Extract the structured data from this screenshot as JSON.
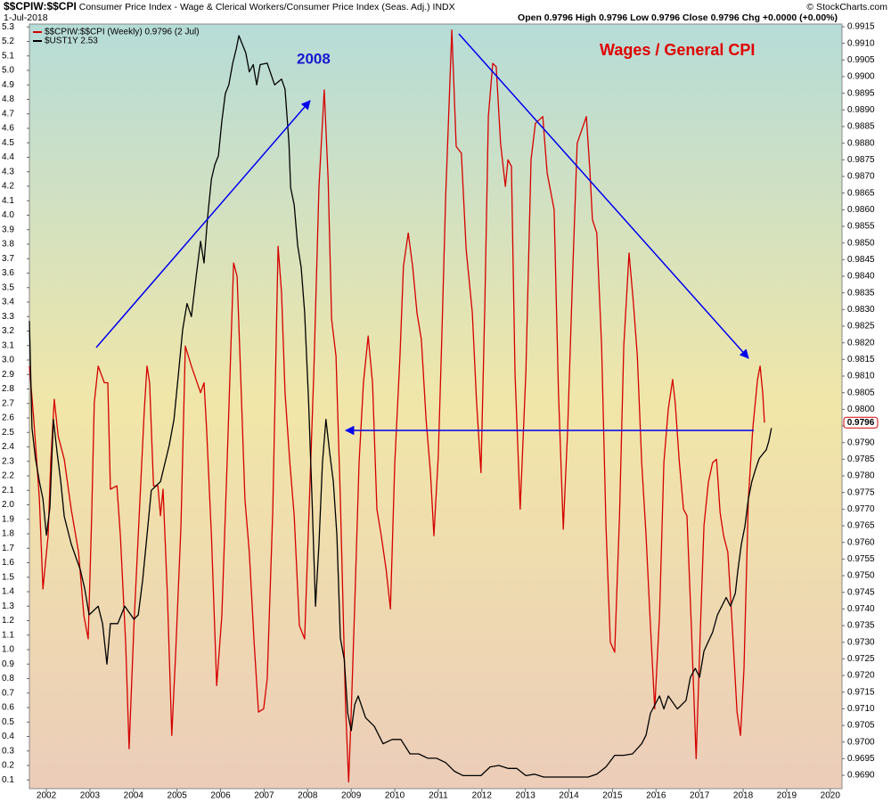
{
  "chart_data": {
    "type": "line",
    "symbol": "$$CPIW:$$CPI",
    "title": "Consumer Price Index - Wage & Clerical Workers/Consumer Price Index (Seas. Adj.)",
    "exchange": "INDX",
    "date": "1-Jul-2018",
    "quote": "Open 0.9796  High 0.9796  Low 0.9796  Close 0.9796  Chg +0.0000 (+0.00%)",
    "source": "© StockCharts.com",
    "annotations": [
      {
        "text": "2008"
      },
      {
        "text": "Wages / General CPI"
      }
    ],
    "xlim": [
      2001.61,
      2020.27
    ],
    "xticks": [
      2002,
      2003,
      2004,
      2005,
      2006,
      2007,
      2008,
      2009,
      2010,
      2011,
      2012,
      2013,
      2014,
      2015,
      2016,
      2017,
      2018,
      2019,
      2020
    ],
    "ylim": [
      0.04,
      5.32
    ],
    "yticks": [
      0.1,
      0.2,
      0.3,
      0.4,
      0.5,
      0.6,
      0.7,
      0.8,
      0.9,
      {
        "value": 1,
        "label": "1.0"
      },
      1.1,
      1.2,
      1.3,
      1.4,
      1.5,
      1.6,
      1.7,
      1.8,
      1.9,
      {
        "value": 2,
        "label": "2.0"
      },
      2.1,
      2.2,
      2.3,
      2.4,
      2.5,
      2.6,
      2.7,
      2.8,
      2.9,
      {
        "value": 3,
        "label": "3.0"
      },
      3.1,
      3.2,
      3.3,
      3.4,
      3.5,
      3.6,
      3.7,
      3.8,
      3.9,
      {
        "value": 4,
        "label": "4.0"
      },
      4.1,
      4.2,
      4.3,
      4.4,
      4.5,
      4.6,
      4.7,
      4.8,
      4.9,
      {
        "value": 5,
        "label": "5.0"
      },
      5.1,
      5.2,
      5.3
    ],
    "y2lim": [
      0.9686,
      0.99158
    ],
    "y2ticks": [
      {
        "value": 0.969,
        "label": "0.9690"
      },
      0.9695,
      {
        "value": 0.97,
        "label": "0.9700"
      },
      0.9705,
      {
        "value": 0.971,
        "label": "0.9710"
      },
      0.9715,
      {
        "value": 0.972,
        "label": "0.9720"
      },
      0.9725,
      {
        "value": 0.973,
        "label": "0.9730"
      },
      0.9735,
      {
        "value": 0.974,
        "label": "0.9740"
      },
      0.9745,
      {
        "value": 0.975,
        "label": "0.9750"
      },
      0.9755,
      {
        "value": 0.976,
        "label": "0.9760"
      },
      0.9765,
      {
        "value": 0.977,
        "label": "0.9770"
      },
      0.9775,
      {
        "value": 0.978,
        "label": "0.9780"
      },
      0.9785,
      {
        "value": 0.979,
        "label": "0.9790"
      },
      0.9795,
      {
        "value": 0.98,
        "label": "0.9800"
      },
      0.9805,
      {
        "value": 0.981,
        "label": "0.9810"
      },
      0.9815,
      {
        "value": 0.982,
        "label": "0.9820"
      },
      0.9825,
      {
        "value": 0.983,
        "label": "0.9830"
      },
      0.9835,
      {
        "value": 0.984,
        "label": "0.9840"
      },
      0.9845,
      {
        "value": 0.985,
        "label": "0.9850"
      },
      0.9855,
      {
        "value": 0.986,
        "label": "0.9860"
      },
      0.9865,
      {
        "value": 0.987,
        "label": "0.9870"
      },
      0.9875,
      {
        "value": 0.988,
        "label": "0.9880"
      },
      0.9885,
      {
        "value": 0.989,
        "label": "0.9890"
      },
      0.9895,
      {
        "value": 0.99,
        "label": "0.9900"
      },
      0.9905,
      {
        "value": 0.991,
        "label": "0.9910"
      },
      0.9915
    ],
    "grid": false,
    "legend": "top-left",
    "series": [
      {
        "name": "$$CPIW:$$CPI (Weekly) 0.9796 (2 Jul)",
        "color": "#d40000",
        "axis": "y2",
        "last_label": "0.9796",
        "x": [
          2001.61,
          2001.71,
          2001.84,
          2001.92,
          2002.04,
          2002.1,
          2002.18,
          2002.27,
          2002.41,
          2002.57,
          2002.74,
          2002.86,
          2002.96,
          2003.04,
          2003.1,
          2003.19,
          2003.33,
          2003.41,
          2003.47,
          2003.62,
          2003.7,
          2003.82,
          2003.9,
          2004.01,
          2004.15,
          2004.25,
          2004.31,
          2004.37,
          2004.46,
          2004.56,
          2004.62,
          2004.68,
          2004.78,
          2004.88,
          2004.97,
          2005.09,
          2005.19,
          2005.33,
          2005.54,
          2005.62,
          2005.68,
          2005.79,
          2005.91,
          2006.03,
          2006.15,
          2006.3,
          2006.38,
          2006.46,
          2006.56,
          2006.66,
          2006.77,
          2006.87,
          2006.99,
          2007.07,
          2007.2,
          2007.32,
          2007.4,
          2007.48,
          2007.59,
          2007.69,
          2007.81,
          2007.93,
          2008.04,
          2008.14,
          2008.26,
          2008.38,
          2008.47,
          2008.55,
          2008.65,
          2008.75,
          2008.87,
          2008.94,
          2009.0,
          2009.08,
          2009.18,
          2009.28,
          2009.39,
          2009.49,
          2009.59,
          2009.69,
          2009.8,
          2009.9,
          2010.0,
          2010.12,
          2010.2,
          2010.31,
          2010.41,
          2010.51,
          2010.61,
          2010.72,
          2010.82,
          2010.9,
          2011.0,
          2011.08,
          2011.17,
          2011.31,
          2011.41,
          2011.53,
          2011.64,
          2011.78,
          2011.88,
          2011.98,
          2012.07,
          2012.15,
          2012.25,
          2012.33,
          2012.43,
          2012.54,
          2012.6,
          2012.68,
          2012.76,
          2012.88,
          2013.01,
          2013.13,
          2013.23,
          2013.4,
          2013.5,
          2013.66,
          2013.76,
          2013.87,
          2013.97,
          2014.09,
          2014.19,
          2014.4,
          2014.48,
          2014.54,
          2014.64,
          2014.75,
          2014.85,
          2014.95,
          2015.05,
          2015.16,
          2015.26,
          2015.38,
          2015.48,
          2015.57,
          2015.67,
          2015.77,
          2015.87,
          2015.97,
          2016.08,
          2016.18,
          2016.28,
          2016.38,
          2016.44,
          2016.53,
          2016.63,
          2016.71,
          2016.81,
          2016.92,
          2017.02,
          2017.1,
          2017.2,
          2017.3,
          2017.39,
          2017.47,
          2017.55,
          2017.65,
          2017.75,
          2017.86,
          2017.94,
          2018.02,
          2018.12,
          2018.22,
          2018.33,
          2018.39,
          2018.45,
          2018.49
        ],
        "values": [
          0.9813,
          0.9797,
          0.9773,
          0.9746,
          0.9762,
          0.9784,
          0.9803,
          0.9792,
          0.9785,
          0.977,
          0.9757,
          0.9738,
          0.9731,
          0.9768,
          0.9802,
          0.9813,
          0.9808,
          0.9808,
          0.9776,
          0.9777,
          0.9762,
          0.973,
          0.9698,
          0.9735,
          0.9773,
          0.98,
          0.9813,
          0.9808,
          0.9777,
          0.9777,
          0.9768,
          0.9776,
          0.9744,
          0.9702,
          0.9727,
          0.9765,
          0.9819,
          0.9813,
          0.9805,
          0.9808,
          0.9794,
          0.9762,
          0.9717,
          0.9738,
          0.9784,
          0.9844,
          0.984,
          0.9811,
          0.9773,
          0.9757,
          0.973,
          0.9709,
          0.971,
          0.9719,
          0.977,
          0.9849,
          0.9835,
          0.9805,
          0.9784,
          0.9768,
          0.9735,
          0.9731,
          0.9773,
          0.9811,
          0.9867,
          0.9896,
          0.9869,
          0.9827,
          0.9816,
          0.9773,
          0.9711,
          0.9688,
          0.9709,
          0.9741,
          0.9784,
          0.9808,
          0.9822,
          0.9808,
          0.977,
          0.9762,
          0.9752,
          0.974,
          0.9784,
          0.9816,
          0.9843,
          0.9853,
          0.9843,
          0.9829,
          0.9821,
          0.9797,
          0.9781,
          0.9762,
          0.9786,
          0.9821,
          0.9864,
          0.9914,
          0.9879,
          0.9877,
          0.9848,
          0.9829,
          0.9802,
          0.9781,
          0.9832,
          0.9888,
          0.9904,
          0.9903,
          0.988,
          0.9867,
          0.9875,
          0.9873,
          0.9811,
          0.977,
          0.9811,
          0.9875,
          0.9886,
          0.9888,
          0.9871,
          0.986,
          0.9805,
          0.9764,
          0.9794,
          0.9843,
          0.988,
          0.9888,
          0.9872,
          0.9857,
          0.9853,
          0.9819,
          0.9765,
          0.973,
          0.9727,
          0.9768,
          0.9819,
          0.9847,
          0.9832,
          0.9816,
          0.9784,
          0.9762,
          0.9735,
          0.971,
          0.9738,
          0.9784,
          0.98,
          0.9809,
          0.9802,
          0.9785,
          0.977,
          0.9768,
          0.9735,
          0.9695,
          0.9735,
          0.9765,
          0.9778,
          0.9784,
          0.9785,
          0.9769,
          0.9762,
          0.9757,
          0.9735,
          0.9709,
          0.9702,
          0.9722,
          0.9773,
          0.9794,
          0.9809,
          0.9813,
          0.9805,
          0.9796
        ]
      },
      {
        "name": "$UST1Y 2.53",
        "color": "#000000",
        "axis": "y",
        "x": [
          2001.61,
          2001.67,
          2001.75,
          2001.84,
          2001.92,
          2002.0,
          2002.08,
          2002.16,
          2002.25,
          2002.33,
          2002.41,
          2002.57,
          2002.78,
          2002.88,
          2002.98,
          2003.19,
          2003.29,
          2003.39,
          2003.47,
          2003.64,
          2003.8,
          2004.01,
          2004.11,
          2004.21,
          2004.31,
          2004.41,
          2004.62,
          2004.82,
          2004.93,
          2005.03,
          2005.13,
          2005.23,
          2005.33,
          2005.44,
          2005.54,
          2005.62,
          2005.7,
          2005.79,
          2005.87,
          2005.95,
          2006.03,
          2006.11,
          2006.19,
          2006.28,
          2006.36,
          2006.42,
          2006.5,
          2006.58,
          2006.66,
          2006.75,
          2006.83,
          2006.91,
          2007.07,
          2007.24,
          2007.4,
          2007.48,
          2007.57,
          2007.61,
          2007.69,
          2007.77,
          2007.85,
          2007.93,
          2008.02,
          2008.1,
          2008.18,
          2008.26,
          2008.34,
          2008.42,
          2008.51,
          2008.59,
          2008.67,
          2008.75,
          2008.84,
          2008.92,
          2009.0,
          2009.08,
          2009.16,
          2009.33,
          2009.53,
          2009.73,
          2009.94,
          2010.14,
          2010.35,
          2010.55,
          2010.76,
          2010.96,
          2011.17,
          2011.37,
          2011.57,
          2011.78,
          2011.98,
          2012.19,
          2012.39,
          2012.6,
          2012.8,
          2013.01,
          2013.21,
          2013.42,
          2013.62,
          2013.83,
          2014.03,
          2014.24,
          2014.44,
          2014.64,
          2014.85,
          2015.05,
          2015.26,
          2015.46,
          2015.67,
          2015.77,
          2015.87,
          2016.08,
          2016.18,
          2016.28,
          2016.49,
          2016.69,
          2016.79,
          2016.9,
          2017.0,
          2017.1,
          2017.3,
          2017.41,
          2017.61,
          2017.71,
          2017.82,
          2017.88,
          2017.96,
          2018.04,
          2018.12,
          2018.2,
          2018.29,
          2018.37,
          2018.45,
          2018.53,
          2018.59,
          2018.65
        ],
        "values": [
          3.27,
          2.53,
          2.32,
          2.16,
          2.04,
          1.79,
          1.98,
          2.59,
          2.35,
          2.16,
          1.92,
          1.73,
          1.55,
          1.42,
          1.24,
          1.3,
          1.18,
          0.9,
          1.18,
          1.18,
          1.3,
          1.21,
          1.24,
          1.48,
          1.79,
          2.1,
          2.16,
          2.41,
          2.59,
          2.9,
          3.21,
          3.39,
          3.3,
          3.58,
          3.82,
          3.67,
          3.98,
          4.25,
          4.35,
          4.41,
          4.65,
          4.84,
          4.9,
          5.05,
          5.15,
          5.24,
          5.18,
          5.12,
          4.99,
          5.04,
          4.9,
          5.04,
          5.05,
          4.9,
          4.94,
          4.87,
          4.5,
          4.19,
          4.07,
          3.79,
          3.64,
          3.33,
          2.72,
          2.04,
          1.3,
          1.73,
          2.29,
          2.59,
          2.35,
          2.16,
          1.79,
          1.08,
          0.93,
          0.56,
          0.44,
          0.62,
          0.68,
          0.53,
          0.47,
          0.35,
          0.38,
          0.38,
          0.28,
          0.28,
          0.25,
          0.25,
          0.22,
          0.16,
          0.13,
          0.13,
          0.13,
          0.19,
          0.2,
          0.18,
          0.18,
          0.13,
          0.14,
          0.12,
          0.12,
          0.12,
          0.12,
          0.12,
          0.12,
          0.14,
          0.19,
          0.27,
          0.27,
          0.28,
          0.35,
          0.41,
          0.56,
          0.68,
          0.59,
          0.68,
          0.59,
          0.65,
          0.81,
          0.87,
          0.81,
          0.99,
          1.12,
          1.24,
          1.36,
          1.3,
          1.39,
          1.55,
          1.73,
          1.85,
          2.04,
          2.16,
          2.25,
          2.32,
          2.35,
          2.38,
          2.44,
          2.53
        ]
      }
    ]
  }
}
